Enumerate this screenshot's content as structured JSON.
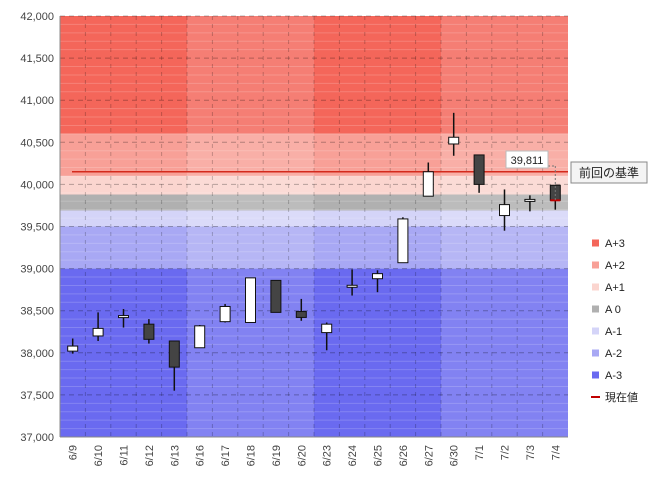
{
  "chart_data": {
    "type": "candlestick",
    "ylim": [
      37000,
      42000
    ],
    "y_ticks": [
      "37,000",
      "37,500",
      "38,000",
      "38,500",
      "39,000",
      "39,500",
      "40,000",
      "40,500",
      "41,000",
      "41,500",
      "42,000"
    ],
    "y_tick_values": [
      37000,
      37500,
      38000,
      38500,
      39000,
      39500,
      40000,
      40500,
      41000,
      41500,
      42000
    ],
    "categories": [
      "6/9",
      "6/10",
      "6/11",
      "6/12",
      "6/13",
      "6/16",
      "6/17",
      "6/18",
      "6/19",
      "6/20",
      "6/23",
      "6/24",
      "6/25",
      "6/26",
      "6/27",
      "6/30",
      "7/1",
      "7/2",
      "7/3",
      "7/4"
    ],
    "candles": [
      {
        "open": 38020,
        "high": 38170,
        "low": 37990,
        "close": 38080
      },
      {
        "open": 38200,
        "high": 38480,
        "low": 38140,
        "close": 38290
      },
      {
        "open": 38420,
        "high": 38520,
        "low": 38300,
        "close": 38430
      },
      {
        "open": 38340,
        "high": 38400,
        "low": 38110,
        "close": 38160
      },
      {
        "open": 38140,
        "high": 38140,
        "low": 37550,
        "close": 37830
      },
      {
        "open": 38060,
        "high": 38330,
        "low": 38060,
        "close": 38320
      },
      {
        "open": 38370,
        "high": 38580,
        "low": 38360,
        "close": 38550
      },
      {
        "open": 38360,
        "high": 38890,
        "low": 38360,
        "close": 38890
      },
      {
        "open": 38860,
        "high": 38860,
        "low": 38480,
        "close": 38480
      },
      {
        "open": 38490,
        "high": 38640,
        "low": 38380,
        "close": 38420
      },
      {
        "open": 38240,
        "high": 38360,
        "low": 38030,
        "close": 38340
      },
      {
        "open": 38780,
        "high": 38990,
        "low": 38680,
        "close": 38790
      },
      {
        "open": 38880,
        "high": 38980,
        "low": 38720,
        "close": 38940
      },
      {
        "open": 39070,
        "high": 39610,
        "low": 39070,
        "close": 39590
      },
      {
        "open": 39860,
        "high": 40260,
        "low": 39860,
        "close": 40150
      },
      {
        "open": 40480,
        "high": 40850,
        "low": 40340,
        "close": 40560
      },
      {
        "open": 40350,
        "high": 40350,
        "low": 39900,
        "close": 40000
      },
      {
        "open": 39630,
        "high": 39940,
        "low": 39450,
        "close": 39760
      },
      {
        "open": 39800,
        "high": 39870,
        "low": 39680,
        "close": 39810
      },
      {
        "open": 39990,
        "high": 39990,
        "low": 39700,
        "close": 39811
      }
    ],
    "zones": [
      {
        "name": "A+3",
        "from": 40600,
        "to": 42000,
        "color": "#f4665a"
      },
      {
        "name": "A+2",
        "from": 40100,
        "to": 40600,
        "color": "#f8a097"
      },
      {
        "name": "A+1",
        "from": 39880,
        "to": 40100,
        "color": "#fbd5cf"
      },
      {
        "name": "A 0",
        "from": 39690,
        "to": 39880,
        "color": "#b0b0b0"
      },
      {
        "name": "A-1",
        "from": 39500,
        "to": 39690,
        "color": "#d4d4f8"
      },
      {
        "name": "A-2",
        "from": 39000,
        "to": 39500,
        "color": "#a8a8f4"
      },
      {
        "name": "A-3",
        "from": 37000,
        "to": 39000,
        "color": "#6a6af0"
      }
    ],
    "reference_line": {
      "value": 40150,
      "label": "前回の基準",
      "color": "#d42a1c"
    },
    "current_value": {
      "value": 39811,
      "label": "39,811",
      "color": "#c00000"
    },
    "legend": {
      "placement": "right",
      "items": [
        {
          "name": "A+3",
          "color": "#f4665a",
          "kind": "square"
        },
        {
          "name": "A+2",
          "color": "#f8a097",
          "kind": "square"
        },
        {
          "name": "A+1",
          "color": "#fbd5cf",
          "kind": "square"
        },
        {
          "name": "A 0",
          "color": "#b0b0b0",
          "kind": "square"
        },
        {
          "name": "A-1",
          "color": "#d4d4f8",
          "kind": "square"
        },
        {
          "name": "A-2",
          "color": "#a8a8f4",
          "kind": "square"
        },
        {
          "name": "A-3",
          "color": "#6a6af0",
          "kind": "square"
        },
        {
          "name": "現在値",
          "color": "#c00000",
          "kind": "line"
        }
      ]
    },
    "grid": true,
    "title": "",
    "xlabel": "",
    "ylabel": ""
  }
}
